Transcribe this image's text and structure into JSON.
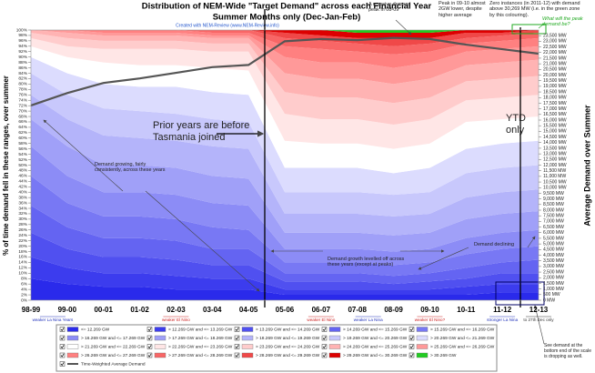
{
  "chart_data": {
    "type": "stacked_area",
    "title": [
      "Distribution of NEM-Wide \"Target Demand\" across each Financial Year",
      "Summer Months only (Dec-Jan-Feb)"
    ],
    "subtitle": "Created with NEM-Review (www.NEM-Review.info)",
    "y_label": "% of time demand fell in these ranges, over summer",
    "y2_label": "Average Demand over Summer",
    "categories": [
      "98-99",
      "99-00",
      "00-01",
      "01-02",
      "02-03",
      "03-04",
      "04-05",
      "05-06",
      "06-07",
      "07-08",
      "08-09",
      "09-10",
      "10-11",
      "11-12",
      "12-13"
    ],
    "ylim": [
      0,
      100
    ],
    "yticks": [
      {
        "value": 0,
        "label": "0%"
      },
      {
        "value": 2,
        "label": "2%"
      },
      {
        "value": 4,
        "label": "4%"
      },
      {
        "value": 6,
        "label": "6%"
      },
      {
        "value": 8,
        "label": "8%"
      },
      {
        "value": 10,
        "label": "10%"
      },
      {
        "value": 12,
        "label": "12%"
      },
      {
        "value": 14,
        "label": "14%"
      },
      {
        "value": 16,
        "label": "16%"
      },
      {
        "value": 18,
        "label": "18%"
      },
      {
        "value": 20,
        "label": "20%"
      },
      {
        "value": 22,
        "label": "22%"
      },
      {
        "value": 24,
        "label": "24%"
      },
      {
        "value": 26,
        "label": "26%"
      },
      {
        "value": 28,
        "label": "28%"
      },
      {
        "value": 30,
        "label": "30%"
      },
      {
        "value": 32,
        "label": "32%"
      },
      {
        "value": 34,
        "label": "34%"
      },
      {
        "value": 36,
        "label": "36%"
      },
      {
        "value": 38,
        "label": "38%"
      },
      {
        "value": 40,
        "label": "40%"
      },
      {
        "value": 42,
        "label": "42%"
      },
      {
        "value": 44,
        "label": "44%"
      },
      {
        "value": 46,
        "label": "46%"
      },
      {
        "value": 48,
        "label": "48%"
      },
      {
        "value": 50,
        "label": "50%"
      },
      {
        "value": 52,
        "label": "52%"
      },
      {
        "value": 54,
        "label": "54%"
      },
      {
        "value": 56,
        "label": "56%"
      },
      {
        "value": 58,
        "label": "58%"
      },
      {
        "value": 60,
        "label": "60%"
      },
      {
        "value": 62,
        "label": "62%"
      },
      {
        "value": 64,
        "label": "64%"
      },
      {
        "value": 66,
        "label": "66%"
      },
      {
        "value": 68,
        "label": "68%"
      },
      {
        "value": 70,
        "label": "70%"
      },
      {
        "value": 72,
        "label": "72%"
      },
      {
        "value": 74,
        "label": "74%"
      },
      {
        "value": 76,
        "label": "76%"
      },
      {
        "value": 78,
        "label": "78%"
      },
      {
        "value": 80,
        "label": "80%"
      },
      {
        "value": 82,
        "label": "82%"
      },
      {
        "value": 84,
        "label": "84%"
      },
      {
        "value": 86,
        "label": "86%"
      },
      {
        "value": 88,
        "label": "88%"
      },
      {
        "value": 90,
        "label": "90%"
      },
      {
        "value": 92,
        "label": "92%"
      },
      {
        "value": 94,
        "label": "94%"
      },
      {
        "value": 96,
        "label": "96%"
      },
      {
        "value": 98,
        "label": "98%"
      },
      {
        "value": 100,
        "label": "100%"
      }
    ],
    "y2lim": [
      0,
      24000
    ],
    "y2ticks": [
      {
        "value": 0,
        "label": "0 MW"
      },
      {
        "value": 500,
        "label": "500 MW"
      },
      {
        "value": 1000,
        "label": "1,000 MW"
      },
      {
        "value": 1500,
        "label": "1,500 MW"
      },
      {
        "value": 2000,
        "label": "2,000 MW"
      },
      {
        "value": 2500,
        "label": "2,500 MW"
      },
      {
        "value": 3000,
        "label": "3,000 MW"
      },
      {
        "value": 3500,
        "label": "3,500 MW"
      },
      {
        "value": 4000,
        "label": "4,000 MW"
      },
      {
        "value": 4500,
        "label": "4,500 MW"
      },
      {
        "value": 5000,
        "label": "5,000 MW"
      },
      {
        "value": 5500,
        "label": "5,500 MW"
      },
      {
        "value": 6000,
        "label": "6,000 MW"
      },
      {
        "value": 6500,
        "label": "6,500 MW"
      },
      {
        "value": 7000,
        "label": "7,000 MW"
      },
      {
        "value": 7500,
        "label": "7,500 MW"
      },
      {
        "value": 8000,
        "label": "8,000 MW"
      },
      {
        "value": 8500,
        "label": "8,500 MW"
      },
      {
        "value": 9000,
        "label": "9,000 MW"
      },
      {
        "value": 9500,
        "label": "9,500 MW"
      },
      {
        "value": 10000,
        "label": "10,000 MW"
      },
      {
        "value": 10500,
        "label": "10,500 MW"
      },
      {
        "value": 11000,
        "label": "11,000 MW"
      },
      {
        "value": 11500,
        "label": "11,500 MW"
      },
      {
        "value": 12000,
        "label": "12,000 MW"
      },
      {
        "value": 12500,
        "label": "12,500 MW"
      },
      {
        "value": 13000,
        "label": "13,000 MW"
      },
      {
        "value": 13500,
        "label": "13,500 MW"
      },
      {
        "value": 14000,
        "label": "14,000 MW"
      },
      {
        "value": 14500,
        "label": "14,500 MW"
      },
      {
        "value": 15000,
        "label": "15,000 MW"
      },
      {
        "value": 15500,
        "label": "15,500 MW"
      },
      {
        "value": 16000,
        "label": "16,000 MW"
      },
      {
        "value": 16500,
        "label": "16,500 MW"
      },
      {
        "value": 17000,
        "label": "17,000 MW"
      },
      {
        "value": 17500,
        "label": "17,500 MW"
      },
      {
        "value": 18000,
        "label": "18,000 MW"
      },
      {
        "value": 18500,
        "label": "18,500 MW"
      },
      {
        "value": 19000,
        "label": "19,000 MW"
      },
      {
        "value": 19500,
        "label": "19,500 MW"
      },
      {
        "value": 20000,
        "label": "20,000 MW"
      },
      {
        "value": 20500,
        "label": "20,500 MW"
      },
      {
        "value": 21000,
        "label": "21,000 MW"
      },
      {
        "value": 21500,
        "label": "21,500 MW"
      },
      {
        "value": 22000,
        "label": "22,000 MW"
      },
      {
        "value": 22500,
        "label": "22,500 MW"
      },
      {
        "value": 23000,
        "label": "23,000 MW"
      },
      {
        "value": 23500,
        "label": "23,500 MW"
      }
    ],
    "series": [
      {
        "name": "<= 12.269 GW",
        "color": "#2a2aeb",
        "values": [
          8,
          6,
          5,
          5,
          4,
          4,
          4,
          2,
          2,
          2,
          2,
          2,
          2,
          3,
          3
        ]
      },
      {
        "name": "> 12.269 GW and <= 13.269 GW",
        "color": "#3c3cee",
        "values": [
          8,
          6,
          5,
          5,
          5,
          4,
          4,
          2,
          2,
          2,
          2,
          2,
          3,
          3,
          3
        ]
      },
      {
        "name": "> 13.269 GW and <= 14.269 GW",
        "color": "#5050f0",
        "values": [
          9,
          7,
          6,
          6,
          6,
          5,
          5,
          3,
          3,
          3,
          2,
          3,
          3,
          4,
          4
        ]
      },
      {
        "name": "> 14.269 GW and <= 15.269 GW",
        "color": "#6464f2",
        "values": [
          10,
          8,
          7,
          7,
          7,
          6,
          6,
          3,
          3,
          3,
          3,
          3,
          4,
          4,
          5
        ]
      },
      {
        "name": "> 15.269 GW and <= 16.269 GW",
        "color": "#7878f4",
        "values": [
          11,
          9,
          8,
          8,
          8,
          8,
          7,
          4,
          4,
          4,
          4,
          4,
          5,
          5,
          5
        ]
      },
      {
        "name": "> 16.269 GW and <= 17.269 GW",
        "color": "#8c8cf6",
        "values": [
          11,
          10,
          9,
          9,
          9,
          9,
          9,
          5,
          5,
          5,
          5,
          5,
          6,
          6,
          6
        ]
      },
      {
        "name": "> 17.269 GW and <= 18.269 GW",
        "color": "#a0a0f8",
        "values": [
          10,
          11,
          10,
          10,
          10,
          10,
          10,
          6,
          6,
          6,
          6,
          6,
          7,
          7,
          7
        ]
      },
      {
        "name": "> 18.269 GW and <= 19.269 GW",
        "color": "#b4b4fa",
        "values": [
          9,
          10,
          11,
          10,
          10,
          11,
          11,
          7,
          7,
          7,
          7,
          7,
          8,
          8,
          8
        ]
      },
      {
        "name": "> 19.269 GW and <= 20.269 GW",
        "color": "#c8c8fc",
        "values": [
          8,
          9,
          10,
          10,
          10,
          10,
          10,
          8,
          8,
          8,
          8,
          8,
          9,
          9,
          9
        ]
      },
      {
        "name": "> 20.269 GW and <= 21.269 GW",
        "color": "#dcdcfe",
        "values": [
          6,
          8,
          9,
          9,
          10,
          10,
          10,
          9,
          9,
          9,
          8,
          9,
          9,
          9,
          9
        ]
      },
      {
        "name": "> 21.269 GW and <= 22.269 GW",
        "color": "#ffffff",
        "values": [
          4,
          6,
          8,
          8,
          8,
          9,
          9,
          10,
          9,
          9,
          9,
          9,
          10,
          9,
          9
        ]
      },
      {
        "name": "> 22.269 GW and <= 23.269 GW",
        "color": "#ffe6e6",
        "values": [
          3,
          4,
          5,
          6,
          6,
          6,
          7,
          10,
          9,
          9,
          9,
          9,
          8,
          8,
          8
        ]
      },
      {
        "name": "> 23.269 GW and <= 24.269 GW",
        "color": "#ffcccc",
        "values": [
          2,
          3,
          3,
          3,
          3,
          3,
          3,
          8,
          8,
          8,
          8,
          8,
          7,
          7,
          7
        ]
      },
      {
        "name": "> 24.269 GW and <= 25.269 GW",
        "color": "#ffb3b3",
        "values": [
          1,
          2,
          2,
          2,
          2,
          2,
          2,
          7,
          7,
          7,
          7,
          7,
          6,
          6,
          6
        ]
      },
      {
        "name": "> 25.269 GW and <= 26.269 GW",
        "color": "#ff9999",
        "values": [
          0,
          1,
          1,
          1,
          1,
          1,
          1,
          6,
          6,
          6,
          6,
          6,
          5,
          5,
          5
        ]
      },
      {
        "name": "> 26.269 GW and <= 27.269 GW",
        "color": "#ff8080",
        "values": [
          0,
          0,
          1,
          1,
          1,
          1,
          1,
          4,
          5,
          4,
          5,
          4,
          3,
          3,
          3
        ]
      },
      {
        "name": "> 27.269 GW and <= 28.269 GW",
        "color": "#f86666",
        "values": [
          0,
          0,
          0,
          0,
          0,
          1,
          1,
          3,
          3,
          3,
          3,
          3,
          2,
          2,
          2
        ]
      },
      {
        "name": "> 28.269 GW and <= 29.269 GW",
        "color": "#f04848",
        "values": [
          0,
          0,
          0,
          0,
          0,
          0,
          0,
          2,
          2,
          2,
          3,
          2,
          2,
          1,
          1
        ]
      },
      {
        "name": "> 29.269 GW and <= 30.269 GW",
        "color": "#dd0000",
        "values": [
          0,
          0,
          0,
          0,
          0,
          0,
          0,
          1,
          2,
          2,
          2,
          2,
          1,
          1,
          0
        ]
      },
      {
        "name": "> 30.269 GW",
        "color": "#22cc22",
        "values": [
          0,
          0,
          0,
          0,
          0,
          0,
          0,
          0,
          0,
          1,
          1,
          1,
          0,
          0,
          0
        ]
      },
      {
        "name": "Time-Weighted Average Demand",
        "color": "#555555",
        "type": "line",
        "axis": "y2",
        "values": [
          17300,
          18400,
          19300,
          19700,
          20200,
          20700,
          20900,
          23000,
          23200,
          23100,
          23300,
          23200,
          22700,
          22300,
          21900
        ]
      }
    ],
    "annotations": [
      "A massive demand peak in 08-09",
      "Peak in 09-10 almost 2GW lower, despite higher average",
      "Zero instances (in 2011-12) with demand above 30,269 MW (i.e. in the green zone by this colouring).",
      "What will the peak demand be?",
      "Prior years are before Tasmania joined",
      "YTD only",
      "Demand growing, fairly consistently, across these years",
      "Demand growth levelled off across these years (except at peaks)",
      "Demand declining",
      "See demand at the bottom end of the scale is dropping as well."
    ],
    "category_notes": [
      "weaker La Nina Years",
      "weaker El Nino",
      "weaker El Nino",
      "weaker La Nina",
      "weaker El Nino?",
      "stronger La Nina",
      "to 27th Dec only"
    ]
  }
}
